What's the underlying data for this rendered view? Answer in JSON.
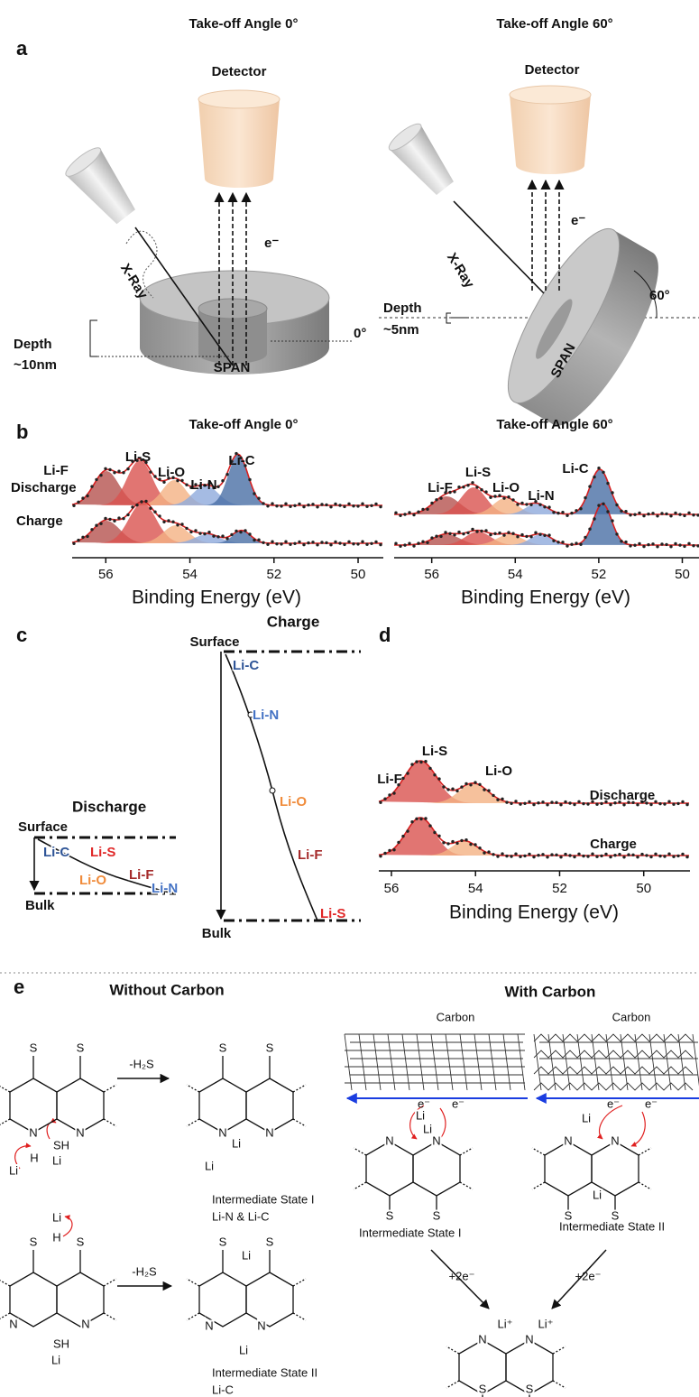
{
  "panel_a": {
    "label": "a",
    "left": {
      "title": "Take-off Angle 0°",
      "detector": "Detector",
      "xray": "X-Ray",
      "electron": "e⁻",
      "depth": [
        "Depth",
        "~10nm"
      ],
      "angle": "0°",
      "sample": "SPAN"
    },
    "right": {
      "title": "Take-off Angle 60°",
      "detector": "Detector",
      "xray": "X-Ray",
      "electron": "e⁻",
      "depth": [
        "Depth",
        "~5nm"
      ],
      "angle": "60°",
      "sample": "SPAN"
    }
  },
  "panel_b": {
    "label": "b",
    "traces": [
      "Discharge",
      "Charge"
    ],
    "plots": [
      {
        "title": "Take-off Angle 0°",
        "species": [
          "Li-F",
          "Li-S",
          "Li-O",
          "Li-N",
          "Li-C"
        ],
        "xlim": [
          56.8,
          49.4
        ],
        "xticks": [
          56,
          54,
          52,
          50
        ],
        "xlabel": "Binding Energy (eV)"
      },
      {
        "title": "Take-off Angle 60°",
        "species": [
          "Li-F",
          "Li-S",
          "Li-O",
          "Li-N",
          "Li-C"
        ],
        "xlim": [
          56.9,
          49.6
        ],
        "xticks": [
          56,
          54,
          52,
          50
        ],
        "xlabel": "Binding Energy (eV)"
      }
    ]
  },
  "panel_c": {
    "label": "c",
    "charge": {
      "title": "Charge",
      "top": "Surface",
      "bottom": "Bulk",
      "species": [
        "Li-C",
        "Li-N",
        "Li-O",
        "Li-F",
        "Li-S"
      ]
    },
    "discharge": {
      "title": "Discharge",
      "top": "Surface",
      "bottom": "Bulk",
      "species": [
        "Li-C",
        "Li-S",
        "Li-O",
        "Li-F",
        "Li-N"
      ]
    }
  },
  "panel_d": {
    "label": "d",
    "species": [
      "Li-S",
      "Li-F",
      "Li-O"
    ],
    "traces": [
      "Discharge",
      "Charge"
    ],
    "xlim": [
      56.3,
      48.9
    ],
    "xticks": [
      56,
      54,
      52,
      50
    ],
    "xlabel": "Binding Energy (eV)"
  },
  "panel_e": {
    "label": "e",
    "without_carbon": "Without Carbon",
    "with_carbon": "With Carbon",
    "carbon": "Carbon",
    "reagent": "-H₂S",
    "electrons": "+2e⁻",
    "electron": "e⁻",
    "states": [
      [
        "Intermediate State I",
        "Li-N & Li-C"
      ],
      [
        "Intermediate State II",
        "Li-C"
      ],
      [
        "Intermediate State I"
      ],
      [
        "Intermediate State II"
      ]
    ],
    "molecules": [
      {
        "atoms": [
          "S",
          "S",
          "N",
          "N",
          "SH",
          "H",
          "Li",
          "Li"
        ]
      },
      {
        "atoms": [
          "S",
          "S",
          "N",
          "N",
          "Li",
          "Li"
        ]
      },
      {
        "atoms": [
          "S",
          "S",
          "Li",
          "H",
          "N",
          "N",
          "SH",
          "Li"
        ]
      },
      {
        "atoms": [
          "S",
          "S",
          "Li",
          "N",
          "N",
          "Li"
        ]
      },
      {
        "atoms": [
          "N",
          "N",
          "Li",
          "Li",
          "S",
          "S"
        ]
      },
      {
        "atoms": [
          "N",
          "N",
          "Li",
          "Li",
          "S",
          "S"
        ]
      },
      {
        "atoms": [
          "N",
          "N",
          "Li⁺",
          "Li⁺",
          "S",
          "S"
        ]
      }
    ]
  }
}
